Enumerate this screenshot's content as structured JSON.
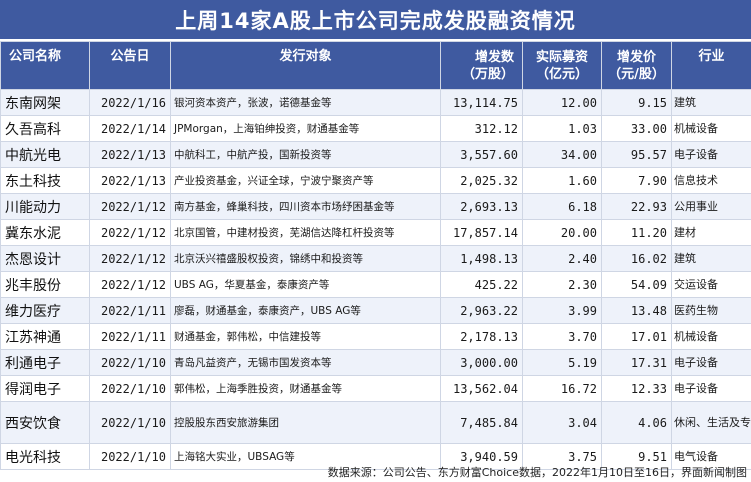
{
  "title": "上周14家A股上市公司完成发股融资情况",
  "headers": {
    "company": "公司名称",
    "date": "公告日",
    "target": "发行对象",
    "shares": "增发数\n（万股）",
    "raised": "实际募资\n（亿元）",
    "price": "增发价\n（元/股）",
    "industry": "行业"
  },
  "rows": [
    {
      "company": "东南网架",
      "date": "2022/1/16",
      "target": "银河资本资产，张波，诺德基金等",
      "shares": "13,114.75",
      "raised": "12.00",
      "price": "9.15",
      "industry": "建筑"
    },
    {
      "company": "久吾高科",
      "date": "2022/1/14",
      "target": "JPMorgan，上海铂绅投资，财通基金等",
      "shares": "312.12",
      "raised": "1.03",
      "price": "33.00",
      "industry": "机械设备"
    },
    {
      "company": "中航光电",
      "date": "2022/1/13",
      "target": "中航科工，中航产投，国新投资等",
      "shares": "3,557.60",
      "raised": "34.00",
      "price": "95.57",
      "industry": "电子设备"
    },
    {
      "company": "东土科技",
      "date": "2022/1/13",
      "target": "产业投资基金，兴证全球，宁波宁聚资产等",
      "shares": "2,025.32",
      "raised": "1.60",
      "price": "7.90",
      "industry": "信息技术"
    },
    {
      "company": "川能动力",
      "date": "2022/1/12",
      "target": "南方基金，蜂巢科技，四川资本市场纾困基金等",
      "shares": "2,693.13",
      "raised": "6.18",
      "price": "22.93",
      "industry": "公用事业"
    },
    {
      "company": "冀东水泥",
      "date": "2022/1/12",
      "target": "北京国管，中建材投资，芜湖信达降杠杆投资等",
      "shares": "17,857.14",
      "raised": "20.00",
      "price": "11.20",
      "industry": "建材"
    },
    {
      "company": "杰恩设计",
      "date": "2022/1/12",
      "target": "北京沃兴禧盛股权投资，锦绣中和投资等",
      "shares": "1,498.13",
      "raised": "2.40",
      "price": "16.02",
      "industry": "建筑"
    },
    {
      "company": "兆丰股份",
      "date": "2022/1/12",
      "target": "UBS AG，华夏基金，泰康资产等",
      "shares": "425.22",
      "raised": "2.30",
      "price": "54.09",
      "industry": "交运设备"
    },
    {
      "company": "维力医疗",
      "date": "2022/1/11",
      "target": "廖磊，财通基金，泰康资产，UBS AG等",
      "shares": "2,963.22",
      "raised": "3.99",
      "price": "13.48",
      "industry": "医药生物"
    },
    {
      "company": "江苏神通",
      "date": "2022/1/11",
      "target": "财通基金，郭伟松，中信建投等",
      "shares": "2,178.13",
      "raised": "3.70",
      "price": "17.01",
      "industry": "机械设备"
    },
    {
      "company": "利通电子",
      "date": "2022/1/10",
      "target": "青岛凡益资产，无锡市国发资本等",
      "shares": "3,000.00",
      "raised": "5.19",
      "price": "17.31",
      "industry": "电子设备"
    },
    {
      "company": "得润电子",
      "date": "2022/1/10",
      "target": "郭伟松，上海季胜投资，财通基金等",
      "shares": "13,562.04",
      "raised": "16.72",
      "price": "12.33",
      "industry": "电子设备"
    },
    {
      "company": "西安饮食",
      "date": "2022/1/10",
      "target": "控股股东西安旅游集团",
      "shares": "7,485.84",
      "raised": "3.04",
      "price": "4.06",
      "industry": "休闲、生活及专业服务"
    },
    {
      "company": "电光科技",
      "date": "2022/1/10",
      "target": "上海铭大实业，UBSAG等",
      "shares": "3,940.59",
      "raised": "3.75",
      "price": "9.51",
      "industry": "电气设备"
    }
  ],
  "footer": "数据来源：公司公告、东方财富Choice数据，2022年1月10日至16日，界面新闻制图"
}
